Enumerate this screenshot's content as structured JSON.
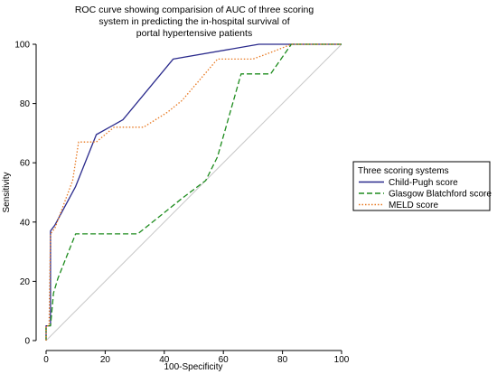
{
  "chart_data": {
    "type": "line",
    "title": [
      "ROC curve showing comparision of AUC of three scoring",
      "system in predicting the in-hospital survival of",
      "portal hypertensive patients"
    ],
    "xlabel": "100-Specificity",
    "ylabel": "Sensitivity",
    "xlim": [
      0,
      100
    ],
    "ylim": [
      0,
      100
    ],
    "xticks": [
      "0",
      "20",
      "40",
      "60",
      "80",
      "100"
    ],
    "yticks": [
      "0",
      "20",
      "40",
      "60",
      "80",
      "100"
    ],
    "grid": false,
    "legend": {
      "title": "Three scoring systems",
      "placement": "right"
    },
    "reference_line": {
      "points": [
        [
          0,
          0
        ],
        [
          100,
          100
        ]
      ],
      "color": "#c8c8c8"
    },
    "series": [
      {
        "name": "Child-Pugh score",
        "color": "#2a2a8c",
        "style": "solid",
        "points": [
          [
            0,
            0
          ],
          [
            0,
            5
          ],
          [
            1.5,
            5
          ],
          [
            1.5,
            37
          ],
          [
            3,
            39
          ],
          [
            10,
            52
          ],
          [
            17,
            69.5
          ],
          [
            26,
            74.5
          ],
          [
            43,
            95
          ],
          [
            72,
            100
          ],
          [
            100,
            100
          ]
        ]
      },
      {
        "name": "Glasgow Blatchford score",
        "color": "#1e8c1e",
        "style": "dashed",
        "points": [
          [
            0,
            0
          ],
          [
            0,
            5
          ],
          [
            1.5,
            5
          ],
          [
            2.5,
            16
          ],
          [
            4,
            21
          ],
          [
            10,
            36
          ],
          [
            31,
            36
          ],
          [
            46,
            48
          ],
          [
            54,
            54
          ],
          [
            58,
            62
          ],
          [
            66,
            90
          ],
          [
            76,
            90
          ],
          [
            83,
            100
          ],
          [
            100,
            100
          ]
        ]
      },
      {
        "name": "MELD score",
        "color": "#e87820",
        "style": "dotted",
        "points": [
          [
            0,
            0
          ],
          [
            0,
            5
          ],
          [
            1,
            5
          ],
          [
            1.5,
            36
          ],
          [
            3,
            38
          ],
          [
            9,
            54
          ],
          [
            11,
            67
          ],
          [
            17,
            67
          ],
          [
            23,
            72
          ],
          [
            33,
            72
          ],
          [
            41,
            77
          ],
          [
            46,
            81
          ],
          [
            58,
            95
          ],
          [
            70,
            95
          ],
          [
            78,
            98
          ],
          [
            83,
            100
          ],
          [
            100,
            100
          ]
        ]
      }
    ]
  }
}
